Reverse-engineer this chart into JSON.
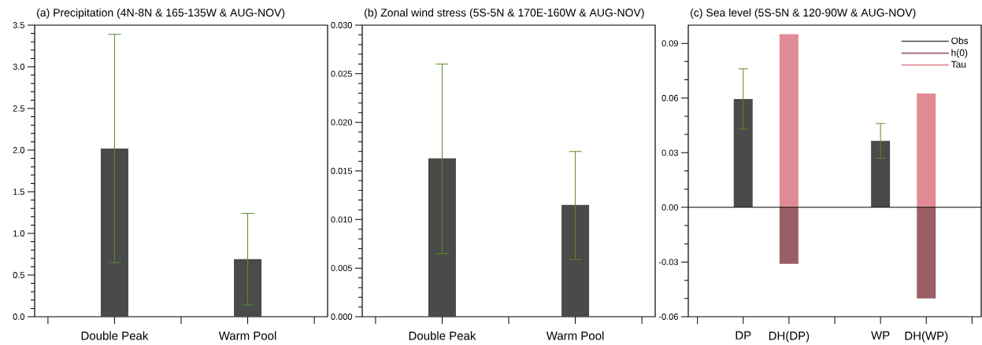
{
  "chart_data": [
    {
      "type": "bar",
      "title": "(a) Precipitation (4N-8N & 165-135W & AUG-NOV)",
      "categories": [
        null,
        "Double Peak",
        null,
        "Warm Pool",
        null
      ],
      "series": [
        {
          "color": "#4a4a4a",
          "values": [
            null,
            2.02,
            null,
            0.69,
            null
          ],
          "errors": [
            null,
            [
              0.65,
              3.39
            ],
            null,
            [
              0.14,
              1.24
            ],
            null
          ]
        }
      ],
      "ylim": [
        0,
        3.5
      ],
      "yticks": [
        {
          "value": 0,
          "label": "0.0"
        },
        {
          "value": 0.5,
          "label": "0.5"
        },
        {
          "value": 1,
          "label": "1.0"
        },
        {
          "value": 1.5,
          "label": "1.5"
        },
        {
          "value": 2,
          "label": "2.0"
        },
        {
          "value": 2.5,
          "label": "2.5"
        },
        {
          "value": 3,
          "label": "3.0"
        },
        {
          "value": 3.5,
          "label": "3.5"
        }
      ]
    },
    {
      "type": "bar",
      "title": "(b) Zonal wind stress (5S-5N & 170E-160W & AUG-NOV)",
      "categories": [
        null,
        "Double Peak",
        null,
        "Warm Pool",
        null
      ],
      "series": [
        {
          "color": "#4a4a4a",
          "values": [
            null,
            0.0163,
            null,
            0.0115,
            null
          ],
          "errors": [
            null,
            [
              0.0065,
              0.026
            ],
            null,
            [
              0.0059,
              0.017
            ],
            null
          ]
        }
      ],
      "ylim": [
        0,
        0.03
      ],
      "yticks": [
        {
          "value": 0,
          "label": "0.000"
        },
        {
          "value": 0.005,
          "label": "0.005"
        },
        {
          "value": 0.01,
          "label": "0.010"
        },
        {
          "value": 0.015,
          "label": "0.015"
        },
        {
          "value": 0.02,
          "label": "0.020"
        },
        {
          "value": 0.025,
          "label": "0.025"
        },
        {
          "value": 0.03,
          "label": "0.030"
        }
      ]
    },
    {
      "type": "bar",
      "title": "(c) Sea level (5S-5N & 120-90W & AUG-NOV)",
      "categories": [
        null,
        "DP",
        "DH(DP)",
        null,
        "WP",
        "DH(WP)",
        null
      ],
      "series": [
        {
          "name": "Obs",
          "color": "#4a4a4a",
          "values": [
            null,
            0.0595,
            null,
            null,
            0.0365,
            null,
            null
          ],
          "errors": [
            null,
            [
              0.043,
              0.076
            ],
            null,
            null,
            [
              0.027,
              0.046
            ],
            null,
            null
          ]
        },
        {
          "name": "h(0)",
          "color": "#9a5f66",
          "values": [
            null,
            null,
            -0.031,
            null,
            null,
            -0.05,
            null
          ]
        },
        {
          "name": "Tau",
          "color": "#e08b94",
          "values": [
            null,
            null,
            0.095,
            null,
            null,
            0.0625,
            null
          ]
        }
      ],
      "ylim": [
        -0.06,
        0.1
      ],
      "yticks": [
        {
          "value": -0.06,
          "label": "-0.06"
        },
        {
          "value": -0.03,
          "label": "-0.03"
        },
        {
          "value": 0,
          "label": "0.00"
        },
        {
          "value": 0.03,
          "label": "0.03"
        },
        {
          "value": 0.06,
          "label": "0.06"
        },
        {
          "value": 0.09,
          "label": "0.09"
        }
      ],
      "ref_lines": [
        {
          "axis": "y",
          "value": 0
        }
      ],
      "legend": "top right"
    }
  ]
}
